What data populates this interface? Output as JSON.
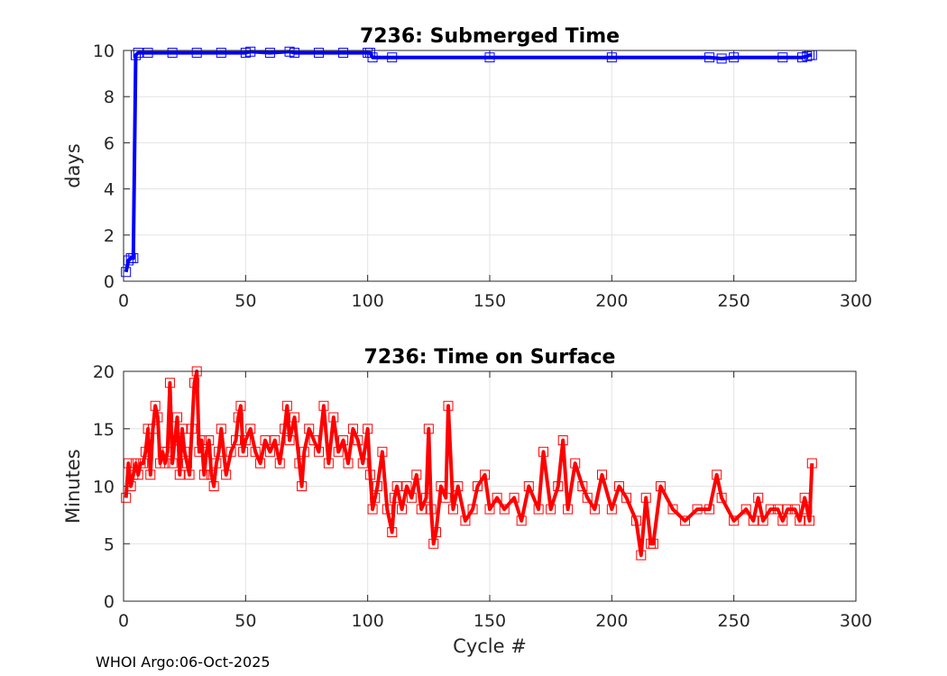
{
  "footer": "WHOI Argo:06-Oct-2025",
  "chart_data": [
    {
      "type": "line",
      "title": "7236: Submerged Time",
      "xlabel": "",
      "ylabel": "days",
      "xlim": [
        0,
        300
      ],
      "ylim": [
        0,
        10
      ],
      "xticks": [
        0,
        50,
        100,
        150,
        200,
        250,
        300
      ],
      "yticks": [
        0,
        2,
        4,
        6,
        8,
        10
      ],
      "grid": true,
      "marker": "square",
      "color": "#0000ff",
      "series": [
        {
          "x": [
            1,
            2,
            3,
            4,
            5,
            6,
            10,
            20,
            30,
            40,
            50,
            52,
            60,
            68,
            70,
            80,
            90,
            100,
            101,
            102,
            110,
            150,
            200,
            240,
            245,
            250,
            270,
            278,
            280,
            281,
            282
          ],
          "y": [
            0.4,
            0.9,
            1.0,
            1.0,
            9.8,
            9.9,
            9.9,
            9.9,
            9.9,
            9.9,
            9.9,
            9.95,
            9.9,
            9.95,
            9.9,
            9.9,
            9.9,
            9.9,
            9.9,
            9.7,
            9.7,
            9.7,
            9.7,
            9.7,
            9.65,
            9.7,
            9.7,
            9.7,
            9.75,
            9.8,
            9.8
          ]
        }
      ]
    },
    {
      "type": "line",
      "title": "7236: Time on Surface",
      "xlabel": "Cycle #",
      "ylabel": "Minutes",
      "xlim": [
        0,
        300
      ],
      "ylim": [
        0,
        20
      ],
      "xticks": [
        0,
        50,
        100,
        150,
        200,
        250,
        300
      ],
      "yticks": [
        0,
        5,
        10,
        15,
        20
      ],
      "grid": true,
      "marker": "square",
      "color": "#ff0000",
      "series": [
        {
          "x": [
            1,
            2,
            3,
            4,
            5,
            6,
            7,
            8,
            9,
            10,
            11,
            12,
            13,
            14,
            15,
            16,
            17,
            18,
            19,
            20,
            21,
            22,
            23,
            24,
            25,
            26,
            27,
            28,
            29,
            30,
            31,
            32,
            33,
            34,
            35,
            36,
            37,
            38,
            39,
            40,
            42,
            44,
            46,
            47,
            48,
            49,
            50,
            52,
            54,
            56,
            58,
            60,
            62,
            64,
            66,
            67,
            68,
            70,
            72,
            73,
            74,
            76,
            78,
            80,
            82,
            84,
            86,
            88,
            90,
            92,
            94,
            96,
            98,
            100,
            101,
            102,
            103,
            104,
            106,
            108,
            110,
            111,
            112,
            114,
            116,
            118,
            120,
            122,
            124,
            125,
            126,
            127,
            128,
            130,
            132,
            133,
            135,
            137,
            140,
            143,
            145,
            148,
            150,
            153,
            156,
            160,
            163,
            166,
            170,
            172,
            175,
            178,
            180,
            182,
            185,
            188,
            190,
            193,
            196,
            200,
            203,
            206,
            210,
            212,
            214,
            216,
            217,
            220,
            225,
            230,
            235,
            240,
            243,
            245,
            250,
            255,
            258,
            260,
            262,
            265,
            268,
            270,
            272,
            275,
            277,
            279,
            280,
            281,
            282
          ],
          "y": [
            9,
            12,
            10,
            11,
            12,
            11,
            12,
            12,
            13,
            15,
            11,
            15,
            17,
            16,
            12,
            13,
            12,
            13,
            19,
            12,
            14,
            16,
            11,
            15,
            13,
            12,
            11,
            15,
            19,
            20,
            13,
            14,
            11,
            13,
            14,
            11,
            10,
            12,
            13,
            15,
            11,
            13,
            14,
            16,
            17,
            13,
            14,
            15,
            13,
            12,
            14,
            13,
            14,
            12,
            15,
            17,
            14,
            16,
            12,
            10,
            13,
            15,
            14,
            13,
            17,
            12,
            16,
            13,
            14,
            12,
            15,
            14,
            12,
            15,
            11,
            8,
            9,
            10,
            13,
            8,
            6,
            9,
            10,
            8,
            10,
            9,
            11,
            8,
            9,
            15,
            8,
            5,
            6,
            10,
            9,
            17,
            8,
            10,
            7,
            8,
            10,
            11,
            8,
            9,
            8,
            9,
            7,
            10,
            8,
            13,
            8,
            10,
            14,
            8,
            12,
            10,
            9,
            8,
            11,
            8,
            10,
            9,
            7,
            4,
            9,
            5,
            5,
            10,
            8,
            7,
            8,
            8,
            11,
            9,
            7,
            8,
            7,
            9,
            7,
            8,
            8,
            7,
            8,
            8,
            7,
            9,
            8,
            7,
            12
          ]
        }
      ]
    }
  ]
}
